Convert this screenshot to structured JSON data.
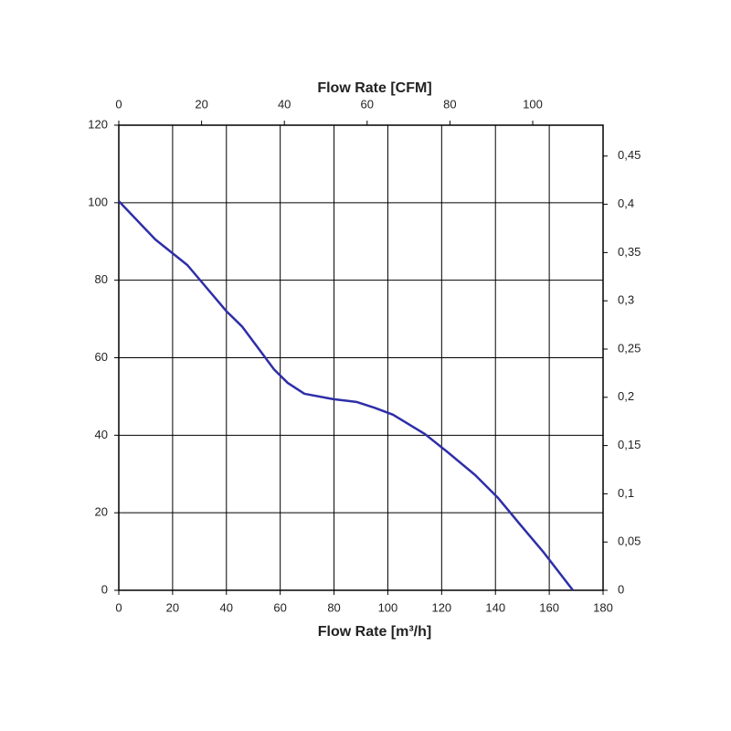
{
  "chart_data": {
    "type": "line",
    "xlabel": "Flow Rate [m³/h]",
    "x2label": "Flow Rate [CFM]",
    "x": [
      0,
      13.6,
      25.5,
      40,
      45.9,
      57.7,
      62.8,
      69,
      79.8,
      88.3,
      95,
      101.9,
      113.8,
      122.3,
      132.5,
      141,
      149.5,
      158,
      168.8
    ],
    "values": [
      100.4,
      90.5,
      83.9,
      72,
      68,
      57,
      53.5,
      50.7,
      49.3,
      48.6,
      47.1,
      45.3,
      40.3,
      35.6,
      29.7,
      23.8,
      16.7,
      9.7,
      0
    ],
    "color": "#2e2ea8",
    "xlim": [
      0,
      180
    ],
    "xticks": [
      0,
      20,
      40,
      60,
      80,
      100,
      120,
      140,
      160,
      180
    ],
    "x2lim": [
      0,
      117
    ],
    "x2ticks": [
      0,
      20,
      40,
      60,
      80,
      100
    ],
    "ylim": [
      0,
      120
    ],
    "yticks": [
      0,
      20,
      40,
      60,
      80,
      100,
      120
    ],
    "y2lim": [
      0,
      0.482
    ],
    "y2ticks": [
      0,
      {
        "value": 0.05,
        "label": "0,05"
      },
      {
        "value": 0.1,
        "label": "0,1"
      },
      {
        "value": 0.15,
        "label": "0,15"
      },
      {
        "value": 0.2,
        "label": "0,2"
      },
      {
        "value": 0.25,
        "label": "0,25"
      },
      {
        "value": 0.3,
        "label": "0,3"
      },
      {
        "value": 0.35,
        "label": "0,35"
      },
      {
        "value": 0.4,
        "label": "0,4"
      },
      {
        "value": 0.45,
        "label": "0,45"
      }
    ],
    "grid": true
  }
}
